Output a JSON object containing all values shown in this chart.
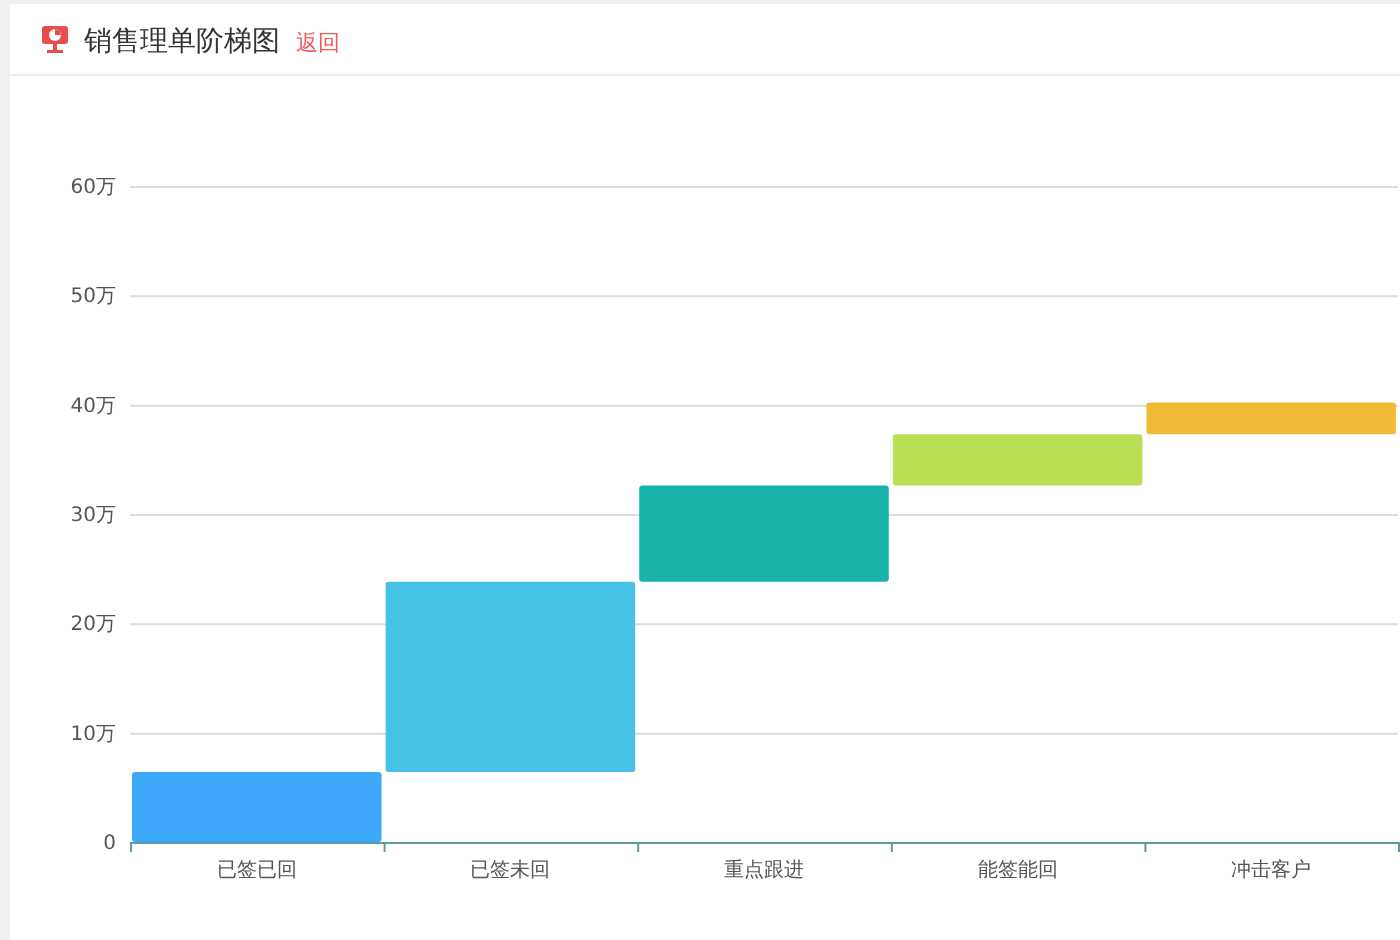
{
  "chart_data": {
    "type": "bar",
    "title": "销售理单阶梯图",
    "annotations": [
      "返回"
    ],
    "categories": [
      "已签已回",
      "已签未回",
      "重点跟进",
      "能签能回",
      "冲击客户"
    ],
    "values": [
      6.4,
      17.4,
      8.8,
      4.7,
      2.9
    ],
    "base": [
      0,
      6.4,
      23.8,
      32.6,
      37.3
    ],
    "colors": [
      "#3ea8fb",
      "#46c2e6",
      "#17b3aa",
      "#badf55",
      "#f1b935"
    ],
    "ylim": [
      0,
      60
    ],
    "yticks": [
      0,
      {
        "value": 10,
        "label": "10万"
      },
      {
        "value": 20,
        "label": "20万"
      },
      {
        "value": 30,
        "label": "30万"
      },
      {
        "value": 40,
        "label": "40万"
      },
      {
        "value": 50,
        "label": "50万"
      },
      {
        "value": 60,
        "label": "60万"
      }
    ],
    "grid": "y"
  }
}
